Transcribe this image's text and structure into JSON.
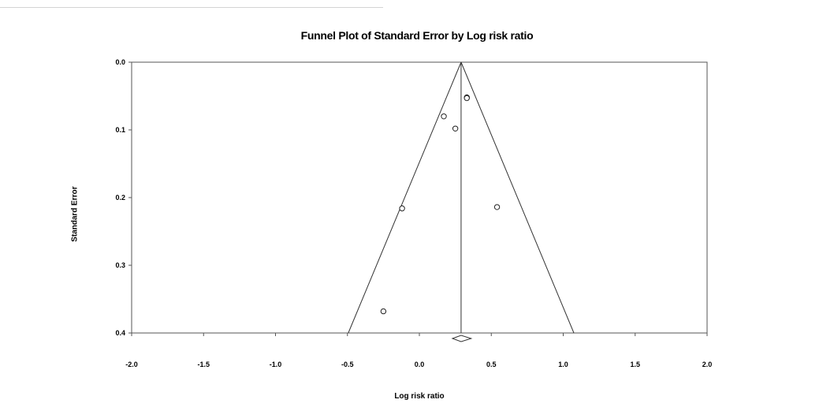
{
  "chart_data": {
    "type": "scatter",
    "title": "Funnel Plot of Standard Error by Log risk ratio",
    "xlabel": "Log risk ratio",
    "ylabel": "Standard Error",
    "xlim": [
      -2.0,
      2.0
    ],
    "ylim": [
      0.0,
      0.4
    ],
    "y_inverted": true,
    "xticks": [
      "-2.0",
      "-1.5",
      "-1.0",
      "-0.5",
      "0.0",
      "0.5",
      "1.0",
      "1.5",
      "2.0"
    ],
    "yticks": [
      "0.0",
      "0.1",
      "0.2",
      "0.3",
      "0.4"
    ],
    "grid": false,
    "summary_effect": 0.29,
    "funnel_multiplier": 1.96,
    "summary_diamond": {
      "center": 0.29,
      "lower": 0.23,
      "upper": 0.36
    },
    "points": [
      {
        "x": 0.33,
        "y": 0.052
      },
      {
        "x": 0.33,
        "y": 0.053
      },
      {
        "x": 0.17,
        "y": 0.08
      },
      {
        "x": 0.25,
        "y": 0.098
      },
      {
        "x": -0.12,
        "y": 0.216
      },
      {
        "x": 0.54,
        "y": 0.214
      },
      {
        "x": -0.25,
        "y": 0.368
      }
    ]
  }
}
